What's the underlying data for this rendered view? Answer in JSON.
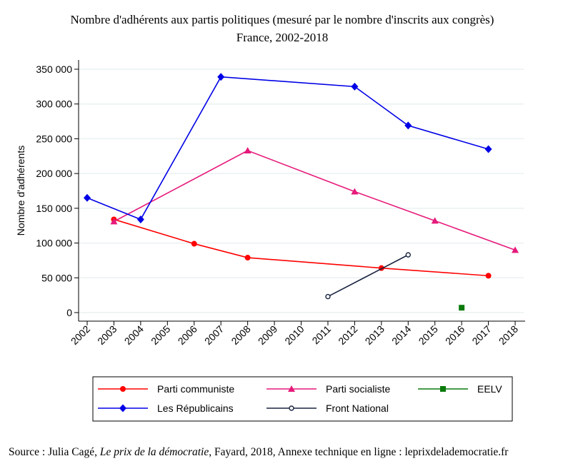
{
  "chart_data": {
    "type": "line",
    "title": "Nombre d'adhérents aux partis politiques (mesuré par le nombre d'inscrits aux congrès)",
    "subtitle": "France, 2002-2018",
    "xlabel": "",
    "ylabel": "Nombre d'adhérents",
    "ylim": [
      0,
      350000
    ],
    "yticks": [
      0,
      50000,
      100000,
      150000,
      200000,
      250000,
      300000,
      350000
    ],
    "ytick_labels": [
      "0",
      "50 000",
      "100 000",
      "150 000",
      "200 000",
      "250 000",
      "300 000",
      "350 000"
    ],
    "categories": [
      "2002",
      "2003",
      "2004",
      "2005",
      "2006",
      "2007",
      "2008",
      "2009",
      "2010",
      "2011",
      "2012",
      "2013",
      "2014",
      "2015",
      "2016",
      "2017",
      "2018"
    ],
    "grid": true,
    "legend_position": "bottom",
    "series": [
      {
        "name": "Parti communiste",
        "color": "#ff0000",
        "marker": "circle",
        "points": [
          [
            "2003",
            134000
          ],
          [
            "2006",
            99000
          ],
          [
            "2008",
            79000
          ],
          [
            "2013",
            64000
          ],
          [
            "2017",
            53000
          ]
        ]
      },
      {
        "name": "Parti socialiste",
        "color": "#e6197a",
        "marker": "triangle",
        "points": [
          [
            "2003",
            131000
          ],
          [
            "2008",
            233000
          ],
          [
            "2012",
            174000
          ],
          [
            "2015",
            132000
          ],
          [
            "2018",
            90000
          ]
        ]
      },
      {
        "name": "EELV",
        "color": "#0a7a0a",
        "marker": "square",
        "points": [
          [
            "2016",
            7000
          ]
        ]
      },
      {
        "name": "Les Républicains",
        "color": "#0000e6",
        "marker": "diamond",
        "points": [
          [
            "2002",
            165000
          ],
          [
            "2004",
            134000
          ],
          [
            "2007",
            339000
          ],
          [
            "2012",
            325000
          ],
          [
            "2014",
            269000
          ],
          [
            "2017",
            235000
          ]
        ]
      },
      {
        "name": "Front National",
        "color": "#1a2540",
        "marker": "hollow-circle",
        "points": [
          [
            "2011",
            23000
          ],
          [
            "2014",
            83000
          ]
        ]
      }
    ]
  },
  "source": {
    "prefix": "Source : Julia Cagé, ",
    "book": "Le prix de la démocratie",
    "suffix": ", Fayard, 2018, Annexe technique en ligne : leprixdelademocratie.fr"
  }
}
